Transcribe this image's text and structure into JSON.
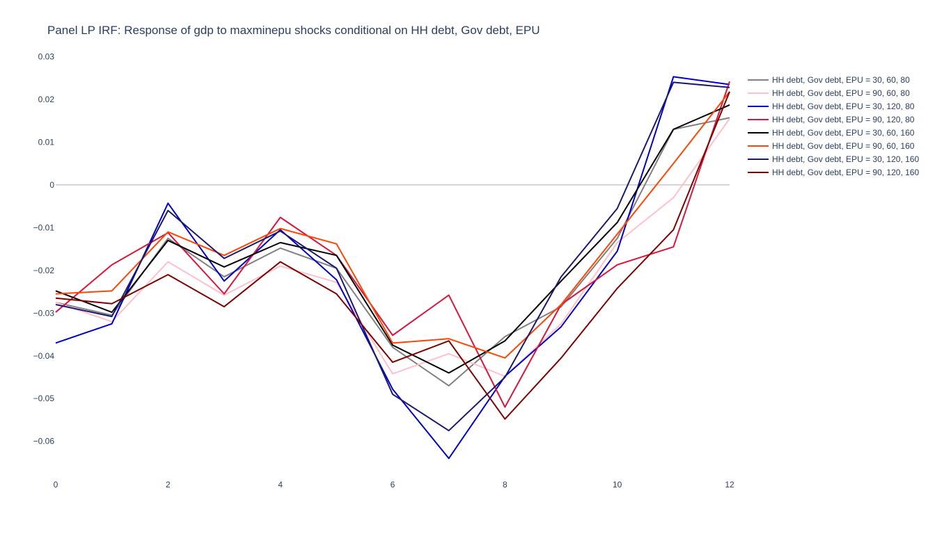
{
  "chart_data": {
    "type": "line",
    "title": "Panel LP IRF: Response of gdp to maxminepu shocks conditional on HH debt, Gov debt, EPU",
    "xlabel": "",
    "ylabel": "",
    "x": [
      0,
      1,
      2,
      3,
      4,
      5,
      6,
      7,
      8,
      9,
      10,
      11,
      12
    ],
    "xlim": [
      0,
      12
    ],
    "ylim": [
      -0.069,
      0.0335
    ],
    "x_ticks": [
      0,
      2,
      4,
      6,
      8,
      10,
      12
    ],
    "x_tick_labels": [
      "0",
      "2",
      "4",
      "6",
      "8",
      "10",
      "12"
    ],
    "y_ticks": [
      -0.06,
      -0.05,
      -0.04,
      -0.03,
      -0.02,
      -0.01,
      0,
      0.01,
      0.02,
      0.03
    ],
    "y_tick_labels": [
      "−0.06",
      "−0.05",
      "−0.04",
      "−0.03",
      "−0.02",
      "−0.01",
      "0",
      "0.01",
      "0.02",
      "0.03"
    ],
    "zero_line": true,
    "grid": false,
    "legend_position": "top-right",
    "series": [
      {
        "name": "HH debt, Gov debt, EPU = 30, 60, 80",
        "color": "#808080",
        "values": [
          -0.0275,
          -0.0305,
          -0.0125,
          -0.0215,
          -0.0148,
          -0.0195,
          -0.038,
          -0.047,
          -0.0355,
          -0.0285,
          -0.0125,
          0.013,
          0.0157
        ]
      },
      {
        "name": "HH debt, Gov debt, EPU = 90, 60, 80",
        "color": "#ffc0cb",
        "values": [
          -0.0275,
          -0.032,
          -0.018,
          -0.0258,
          -0.019,
          -0.0228,
          -0.0442,
          -0.0395,
          -0.0448,
          -0.0325,
          -0.0135,
          -0.003,
          0.0155
        ]
      },
      {
        "name": "HH debt, Gov debt, EPU = 30, 120, 80",
        "color": "#0000cd",
        "values": [
          -0.037,
          -0.0325,
          -0.0043,
          -0.0225,
          -0.0105,
          -0.0222,
          -0.0478,
          -0.064,
          -0.0448,
          -0.0332,
          -0.0155,
          0.0253,
          0.0235
        ]
      },
      {
        "name": "HH debt, Gov debt, EPU = 90, 120, 80",
        "color": "#dc143c",
        "values": [
          -0.0298,
          -0.0187,
          -0.0112,
          -0.0255,
          -0.0076,
          -0.0165,
          -0.0352,
          -0.0258,
          -0.052,
          -0.028,
          -0.0187,
          -0.0145,
          0.0242
        ]
      },
      {
        "name": "HH debt, Gov debt, EPU = 30, 60, 160",
        "color": "#000000",
        "values": [
          -0.0248,
          -0.0298,
          -0.013,
          -0.0192,
          -0.0135,
          -0.0165,
          -0.0375,
          -0.044,
          -0.0365,
          -0.0225,
          -0.0088,
          0.013,
          0.0187
        ]
      },
      {
        "name": "HH debt, Gov debt, EPU = 90, 60, 160",
        "color": "#ff4500",
        "values": [
          -0.0255,
          -0.0248,
          -0.011,
          -0.0165,
          -0.0102,
          -0.0138,
          -0.037,
          -0.036,
          -0.0405,
          -0.028,
          -0.0115,
          0.005,
          0.0218
        ]
      },
      {
        "name": "HH debt, Gov debt, EPU = 30, 120, 160",
        "color": "#191970",
        "values": [
          -0.028,
          -0.0308,
          -0.006,
          -0.0172,
          -0.0108,
          -0.0195,
          -0.049,
          -0.0575,
          -0.045,
          -0.0215,
          -0.0055,
          0.024,
          0.0228
        ]
      },
      {
        "name": "HH debt, Gov debt, EPU = 90, 120, 160",
        "color": "#800000",
        "values": [
          -0.0265,
          -0.0278,
          -0.021,
          -0.0285,
          -0.018,
          -0.0255,
          -0.0415,
          -0.0365,
          -0.0548,
          -0.0405,
          -0.0242,
          -0.0105,
          0.0218
        ]
      }
    ]
  }
}
